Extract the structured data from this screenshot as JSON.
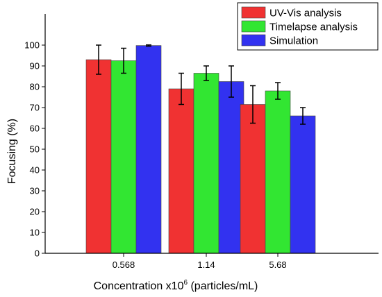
{
  "chart_data": {
    "type": "bar",
    "xlabel": "Concentration x10",
    "xlabel_superscript": "6",
    "xlabel_suffix": " (particles/mL)",
    "ylabel": "Focusing (%)",
    "ylim": [
      0,
      100
    ],
    "yticks": [
      0,
      10,
      20,
      30,
      40,
      50,
      60,
      70,
      80,
      90,
      100
    ],
    "categories": [
      "0.568",
      "1.14",
      "5.68"
    ],
    "grid": false,
    "legend_position": "top-right",
    "series": [
      {
        "name": "UV-Vis analysis",
        "color": "#f03232",
        "values": [
          93,
          79,
          71.5
        ],
        "errors": [
          7,
          7.5,
          9
        ]
      },
      {
        "name": "Timelapse analysis",
        "color": "#32e632",
        "values": [
          92.5,
          86.5,
          78
        ],
        "errors": [
          6,
          3.5,
          4
        ]
      },
      {
        "name": "Simulation",
        "color": "#3232f0",
        "values": [
          99.8,
          82.5,
          66
        ],
        "errors": [
          0.3,
          7.5,
          4
        ]
      }
    ]
  }
}
